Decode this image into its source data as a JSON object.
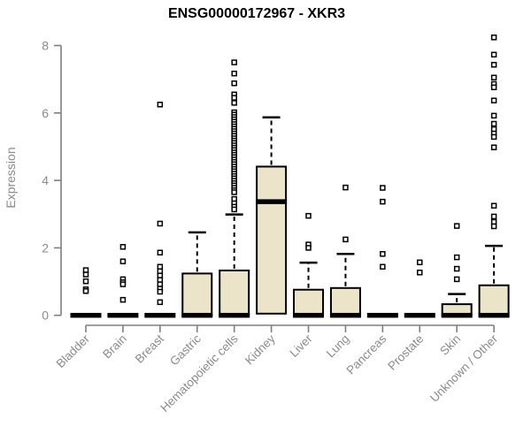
{
  "title": "ENSG00000172967 - XKR3",
  "chart_data": {
    "type": "boxplot",
    "title": "ENSG00000172967 - XKR3",
    "ylabel": "Expression",
    "xlabel": "",
    "ylim": [
      0,
      8
    ],
    "yticks": [
      0,
      2,
      4,
      6,
      8
    ],
    "grid": false,
    "legend": false,
    "box_fill_color": "#ece4c9",
    "box_line_color": "#000000",
    "axis_color": "#7f7f7f",
    "label_color": "#8a8a8a",
    "categories": [
      "Bladder",
      "Brain",
      "Breast",
      "Gastric",
      "Hematopoietic cells",
      "Kidney",
      "Liver",
      "Lung",
      "Pancreas",
      "Prostate",
      "Skin",
      "Unknown / Other"
    ],
    "boxes": [
      {
        "category": "Bladder",
        "q1": 0,
        "median": 0,
        "q3": 0,
        "whisker_low": 0,
        "whisker_high": 0,
        "outliers": [
          1.34,
          1.21,
          1.01,
          0.77,
          0.72
        ]
      },
      {
        "category": "Brain",
        "q1": 0,
        "median": 0,
        "q3": 0,
        "whisker_low": 0,
        "whisker_high": 0,
        "outliers": [
          2.03,
          1.6,
          1.07,
          0.98,
          0.92,
          0.46
        ]
      },
      {
        "category": "Breast",
        "q1": 0,
        "median": 0,
        "q3": 0,
        "whisker_low": 0,
        "whisker_high": 0,
        "outliers": [
          6.25,
          2.72,
          1.86,
          1.44,
          1.31,
          1.18,
          1.05,
          0.92,
          0.79,
          0.7,
          0.39
        ]
      },
      {
        "category": "Gastric",
        "q1": 0,
        "median": 0,
        "q3": 1.24,
        "whisker_low": 0,
        "whisker_high": 2.46,
        "outliers": []
      },
      {
        "category": "Hematopoietic cells",
        "q1": 0,
        "median": 0,
        "q3": 1.33,
        "whisker_low": 0,
        "whisker_high": 2.99,
        "outliers": [
          7.5,
          7.17,
          6.88,
          6.55,
          6.45,
          6.3,
          6.02,
          5.95,
          5.88,
          5.81,
          5.74,
          5.67,
          5.6,
          5.53,
          5.46,
          5.39,
          5.32,
          5.25,
          5.18,
          5.11,
          5.04,
          4.97,
          4.9,
          4.83,
          4.76,
          4.69,
          4.62,
          4.55,
          4.48,
          4.41,
          4.34,
          4.27,
          4.2,
          4.13,
          4.06,
          3.99,
          3.92,
          3.85,
          3.78,
          3.71,
          3.65,
          3.45,
          3.32,
          3.22,
          3.14
        ]
      },
      {
        "category": "Kidney",
        "q1": 0.05,
        "median": 3.37,
        "q3": 4.41,
        "whisker_low": 0.05,
        "whisker_high": 5.87,
        "outliers": []
      },
      {
        "category": "Liver",
        "q1": 0,
        "median": 0,
        "q3": 0.76,
        "whisker_low": 0,
        "whisker_high": 1.56,
        "outliers": [
          2.95,
          2.1,
          2.0
        ]
      },
      {
        "category": "Lung",
        "q1": 0,
        "median": 0,
        "q3": 0.81,
        "whisker_low": 0,
        "whisker_high": 1.82,
        "outliers": [
          3.79,
          2.25
        ]
      },
      {
        "category": "Pancreas",
        "q1": 0,
        "median": 0,
        "q3": 0,
        "whisker_low": 0,
        "whisker_high": 0,
        "outliers": [
          3.78,
          3.37,
          1.82,
          1.44
        ]
      },
      {
        "category": "Prostate",
        "q1": 0,
        "median": 0,
        "q3": 0,
        "whisker_low": 0,
        "whisker_high": 0,
        "outliers": [
          1.57,
          1.27
        ]
      },
      {
        "category": "Skin",
        "q1": 0,
        "median": 0,
        "q3": 0.33,
        "whisker_low": 0,
        "whisker_high": 0.63,
        "outliers": [
          2.65,
          1.72,
          1.38,
          1.07
        ]
      },
      {
        "category": "Unknown / Other",
        "q1": 0,
        "median": 0,
        "q3": 0.89,
        "whisker_low": 0,
        "whisker_high": 2.06,
        "outliers": [
          8.24,
          7.73,
          7.43,
          7.05,
          6.86,
          6.76,
          6.37,
          5.92,
          5.68,
          5.52,
          5.39,
          5.29,
          4.98,
          3.25,
          2.93,
          2.77,
          2.64
        ]
      }
    ]
  }
}
